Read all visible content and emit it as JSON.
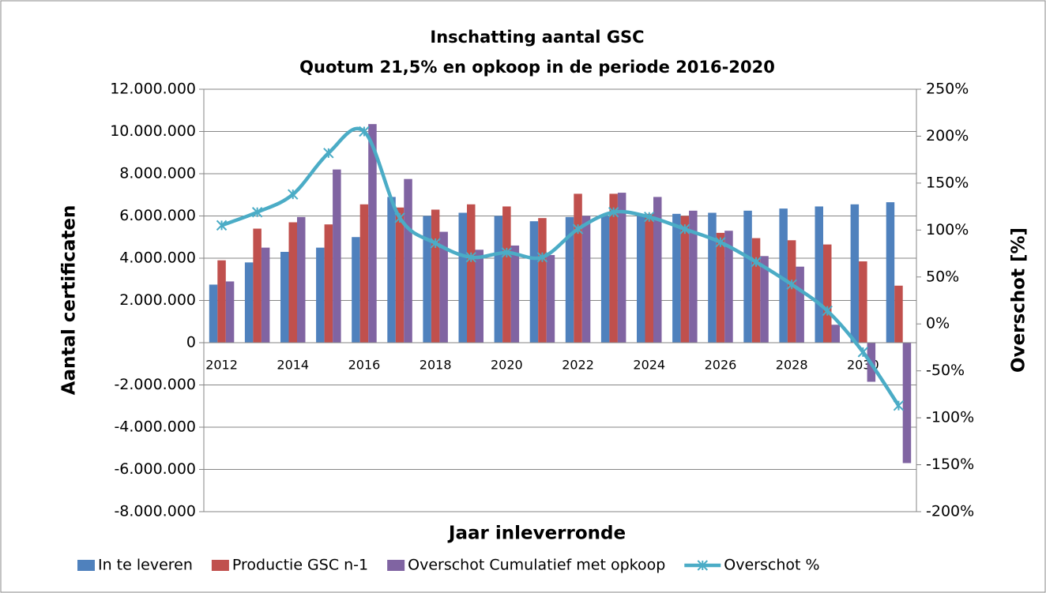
{
  "chart_data": {
    "type": "bar",
    "title": "Inschatting aantal GSC",
    "subtitle": "Quotum 21,5% en opkoop in de periode 2016-2020",
    "x_label": "Jaar inleverronde",
    "y_label": "Aantal certificaten",
    "y2_label": "Overschot [%]",
    "categories": [
      "2012",
      null,
      "2014",
      null,
      "2016",
      null,
      "2018",
      null,
      "2020",
      null,
      "2022",
      null,
      "2024",
      null,
      "2026",
      null,
      "2028",
      null,
      "2030",
      null
    ],
    "series": [
      {
        "name": "In te leveren",
        "color": "#4f81bd",
        "values": [
          2750000,
          3800000,
          4300000,
          4500000,
          5000000,
          6900000,
          6000000,
          6150000,
          6000000,
          5750000,
          5950000,
          6000000,
          6000000,
          6100000,
          6150000,
          6250000,
          6350000,
          6450000,
          6550000,
          6650000
        ]
      },
      {
        "name": "Productie GSC n-1",
        "color": "#c0504d",
        "values": [
          3900000,
          5400000,
          5700000,
          5600000,
          6550000,
          6400000,
          6300000,
          6550000,
          6450000,
          5900000,
          7050000,
          7050000,
          6100000,
          6000000,
          5200000,
          4950000,
          4850000,
          4650000,
          3850000,
          2700000
        ]
      },
      {
        "name": "Overschot Cumulatief met opkoop",
        "color": "#8064a2",
        "values": [
          2900000,
          4500000,
          5950000,
          8200000,
          10350000,
          7750000,
          5250000,
          4400000,
          4600000,
          4150000,
          6000000,
          7100000,
          6900000,
          6250000,
          5300000,
          4100000,
          3600000,
          850000,
          -1850000,
          -5700000
        ]
      },
      {
        "name": "Overschot %",
        "color": "#4bacc6",
        "type": "line",
        "axis": "y2",
        "values": [
          105,
          119,
          138,
          182,
          205,
          113,
          86,
          71,
          76,
          71,
          101,
          119,
          114,
          101,
          87,
          66,
          42,
          14,
          -30,
          -87
        ]
      }
    ],
    "ylim": [
      -8000000,
      12000000
    ],
    "yticks": [
      {
        "value": -8000000,
        "label": "-8.000.000"
      },
      {
        "value": -6000000,
        "label": "-6.000.000"
      },
      {
        "value": -4000000,
        "label": "-4.000.000"
      },
      {
        "value": -2000000,
        "label": "-2.000.000"
      },
      0,
      {
        "value": 2000000,
        "label": "2.000.000"
      },
      {
        "value": 4000000,
        "label": "4.000.000"
      },
      {
        "value": 6000000,
        "label": "6.000.000"
      },
      {
        "value": 8000000,
        "label": "8.000.000"
      },
      {
        "value": 10000000,
        "label": "10.000.000"
      },
      {
        "value": 12000000,
        "label": "12.000.000"
      }
    ],
    "y2lim": [
      -200,
      250
    ],
    "y2ticks": [
      {
        "value": -200,
        "label": "-200%"
      },
      {
        "value": -150,
        "label": "-150%"
      },
      {
        "value": -100,
        "label": "-100%"
      },
      {
        "value": -50,
        "label": "-50%"
      },
      {
        "value": 0,
        "label": "0%"
      },
      {
        "value": 50,
        "label": "50%"
      },
      {
        "value": 100,
        "label": "100%"
      },
      {
        "value": 150,
        "label": "150%"
      },
      {
        "value": 200,
        "label": "200%"
      },
      {
        "value": 250,
        "label": "250%"
      }
    ],
    "grid": true,
    "legend": "bottom"
  }
}
